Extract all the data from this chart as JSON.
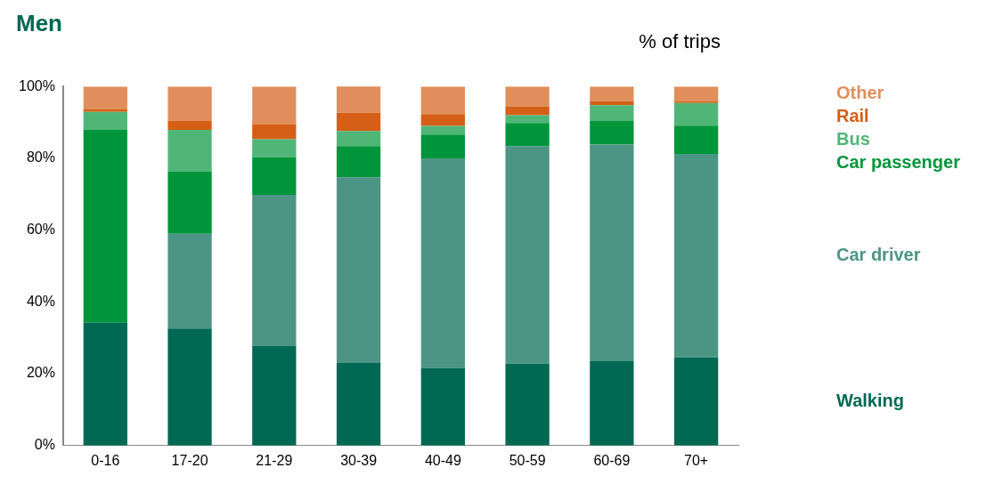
{
  "chart_data": {
    "type": "bar",
    "title": "Men",
    "ylabel": "% of trips",
    "stacked": true,
    "categories": [
      "0-16",
      "17-20",
      "21-29",
      "30-39",
      "40-49",
      "50-59",
      "60-69",
      "70+"
    ],
    "series": [
      {
        "name": "Walking",
        "color": "#006853",
        "values": [
          34.2,
          32.6,
          27.8,
          23.0,
          21.6,
          22.8,
          23.5,
          24.6
        ]
      },
      {
        "name": "Car driver",
        "color": "#4c9585",
        "values": [
          0,
          26.4,
          42.0,
          51.7,
          58.4,
          60.6,
          60.3,
          56.6
        ]
      },
      {
        "name": "Car passenger",
        "color": "#00953a",
        "values": [
          53.7,
          17.4,
          10.5,
          8.7,
          6.6,
          6.4,
          6.7,
          7.9
        ]
      },
      {
        "name": "Bus",
        "color": "#4fb678",
        "values": [
          5.0,
          11.5,
          5.0,
          4.2,
          2.4,
          2.2,
          4.3,
          6.3
        ]
      },
      {
        "name": "Rail",
        "color": "#d55f16",
        "values": [
          0.7,
          2.6,
          4.1,
          5.1,
          3.3,
          2.5,
          1.1,
          0.5
        ]
      },
      {
        "name": "Other",
        "color": "#e08f5c",
        "values": [
          6.4,
          9.5,
          10.6,
          7.7,
          7.7,
          5.5,
          4.1,
          4.1
        ]
      }
    ],
    "ylim": [
      0,
      100
    ],
    "yticks": [
      {
        "value": 0,
        "label": "0%"
      },
      {
        "value": 20,
        "label": "20%"
      },
      {
        "value": 40,
        "label": "40%"
      },
      {
        "value": 60,
        "label": "60%"
      },
      {
        "value": 80,
        "label": "80%"
      },
      {
        "value": 100,
        "label": "100%"
      }
    ],
    "grid": false,
    "legend": "right"
  }
}
